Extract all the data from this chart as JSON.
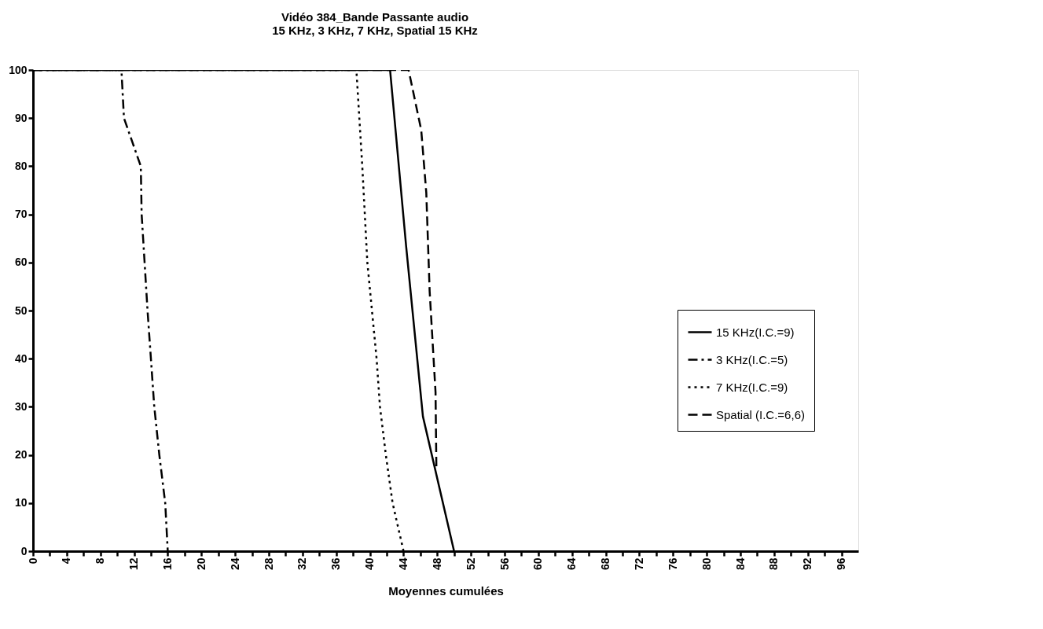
{
  "chart_data": {
    "type": "line",
    "title": "Vidéo 384_Bande Passante audio\n15 KHz, 3 KHz, 7 KHz, Spatial 15 KHz",
    "xlabel": "Moyennes cumulées",
    "xlim": [
      0,
      98
    ],
    "ylim": [
      0,
      100
    ],
    "xticks": [
      0,
      {
        "value": 2,
        "label": null
      },
      4,
      {
        "value": 6,
        "label": null
      },
      8,
      {
        "value": 10,
        "label": null
      },
      12,
      {
        "value": 14,
        "label": null
      },
      16,
      {
        "value": 18,
        "label": null
      },
      20,
      {
        "value": 22,
        "label": null
      },
      24,
      {
        "value": 26,
        "label": null
      },
      28,
      {
        "value": 30,
        "label": null
      },
      32,
      {
        "value": 34,
        "label": null
      },
      36,
      {
        "value": 38,
        "label": null
      },
      40,
      {
        "value": 42,
        "label": null
      },
      44,
      {
        "value": 46,
        "label": null
      },
      48,
      {
        "value": 50,
        "label": null
      },
      52,
      {
        "value": 54,
        "label": null
      },
      56,
      {
        "value": 58,
        "label": null
      },
      60,
      {
        "value": 62,
        "label": null
      },
      64,
      {
        "value": 66,
        "label": null
      },
      68,
      {
        "value": 70,
        "label": null
      },
      72,
      {
        "value": 74,
        "label": null
      },
      76,
      {
        "value": 78,
        "label": null
      },
      80,
      {
        "value": 82,
        "label": null
      },
      84,
      {
        "value": 86,
        "label": null
      },
      88,
      {
        "value": 90,
        "label": null
      },
      92,
      {
        "value": 94,
        "label": null
      },
      96
    ],
    "yticks": [
      0,
      10,
      20,
      30,
      40,
      50,
      60,
      70,
      80,
      90,
      100
    ],
    "grid": false,
    "legend": "right",
    "series": [
      {
        "name": "15 KHz(I.C.=9)",
        "color": "#000000",
        "line_style": "solid",
        "x": [
          0,
          42.4,
          44.3,
          46.3,
          50
        ],
        "values": [
          100,
          100,
          63.5,
          28,
          0
        ]
      },
      {
        "name": "3 KHz(I.C.=5)",
        "color": "#000000",
        "line_style": "dashdot",
        "x": [
          0,
          10.5,
          10.8,
          12.8,
          12.9,
          13.6,
          14.0,
          14.4,
          15.0,
          15.7,
          16.0
        ],
        "values": [
          100,
          100,
          90,
          80,
          70,
          50,
          40,
          30,
          20,
          10,
          0
        ]
      },
      {
        "name": "7 KHz(I.C.=9)",
        "color": "#000000",
        "line_style": "dotted",
        "x": [
          0,
          38.4,
          39.1,
          39.7,
          40.8,
          41.2,
          41.9,
          42.7,
          44.0
        ],
        "values": [
          100,
          100,
          80,
          60,
          40,
          30,
          20,
          10,
          0
        ]
      },
      {
        "name": "Spatial (I.C.=6,6)",
        "color": "#000000",
        "line_style": "dashed",
        "x": [
          0,
          44.6,
          46.1,
          46.7,
          47.1,
          47.8,
          47.9
        ],
        "values": [
          100,
          100,
          87.5,
          74.5,
          54,
          33,
          17
        ]
      }
    ]
  }
}
